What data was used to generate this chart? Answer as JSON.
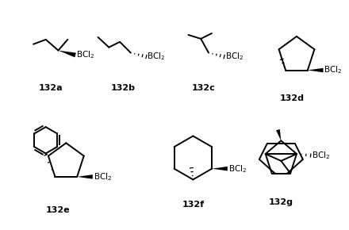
{
  "bg_color": "#ffffff",
  "figsize": [
    4.4,
    2.9
  ],
  "dpi": 100,
  "labels": [
    "132a",
    "132b",
    "132c",
    "132d",
    "132e",
    "132f",
    "132g"
  ],
  "label_fontsize": 8,
  "label_fontweight": "bold",
  "bcl2_fontsize": 7.5,
  "lw": 1.4
}
